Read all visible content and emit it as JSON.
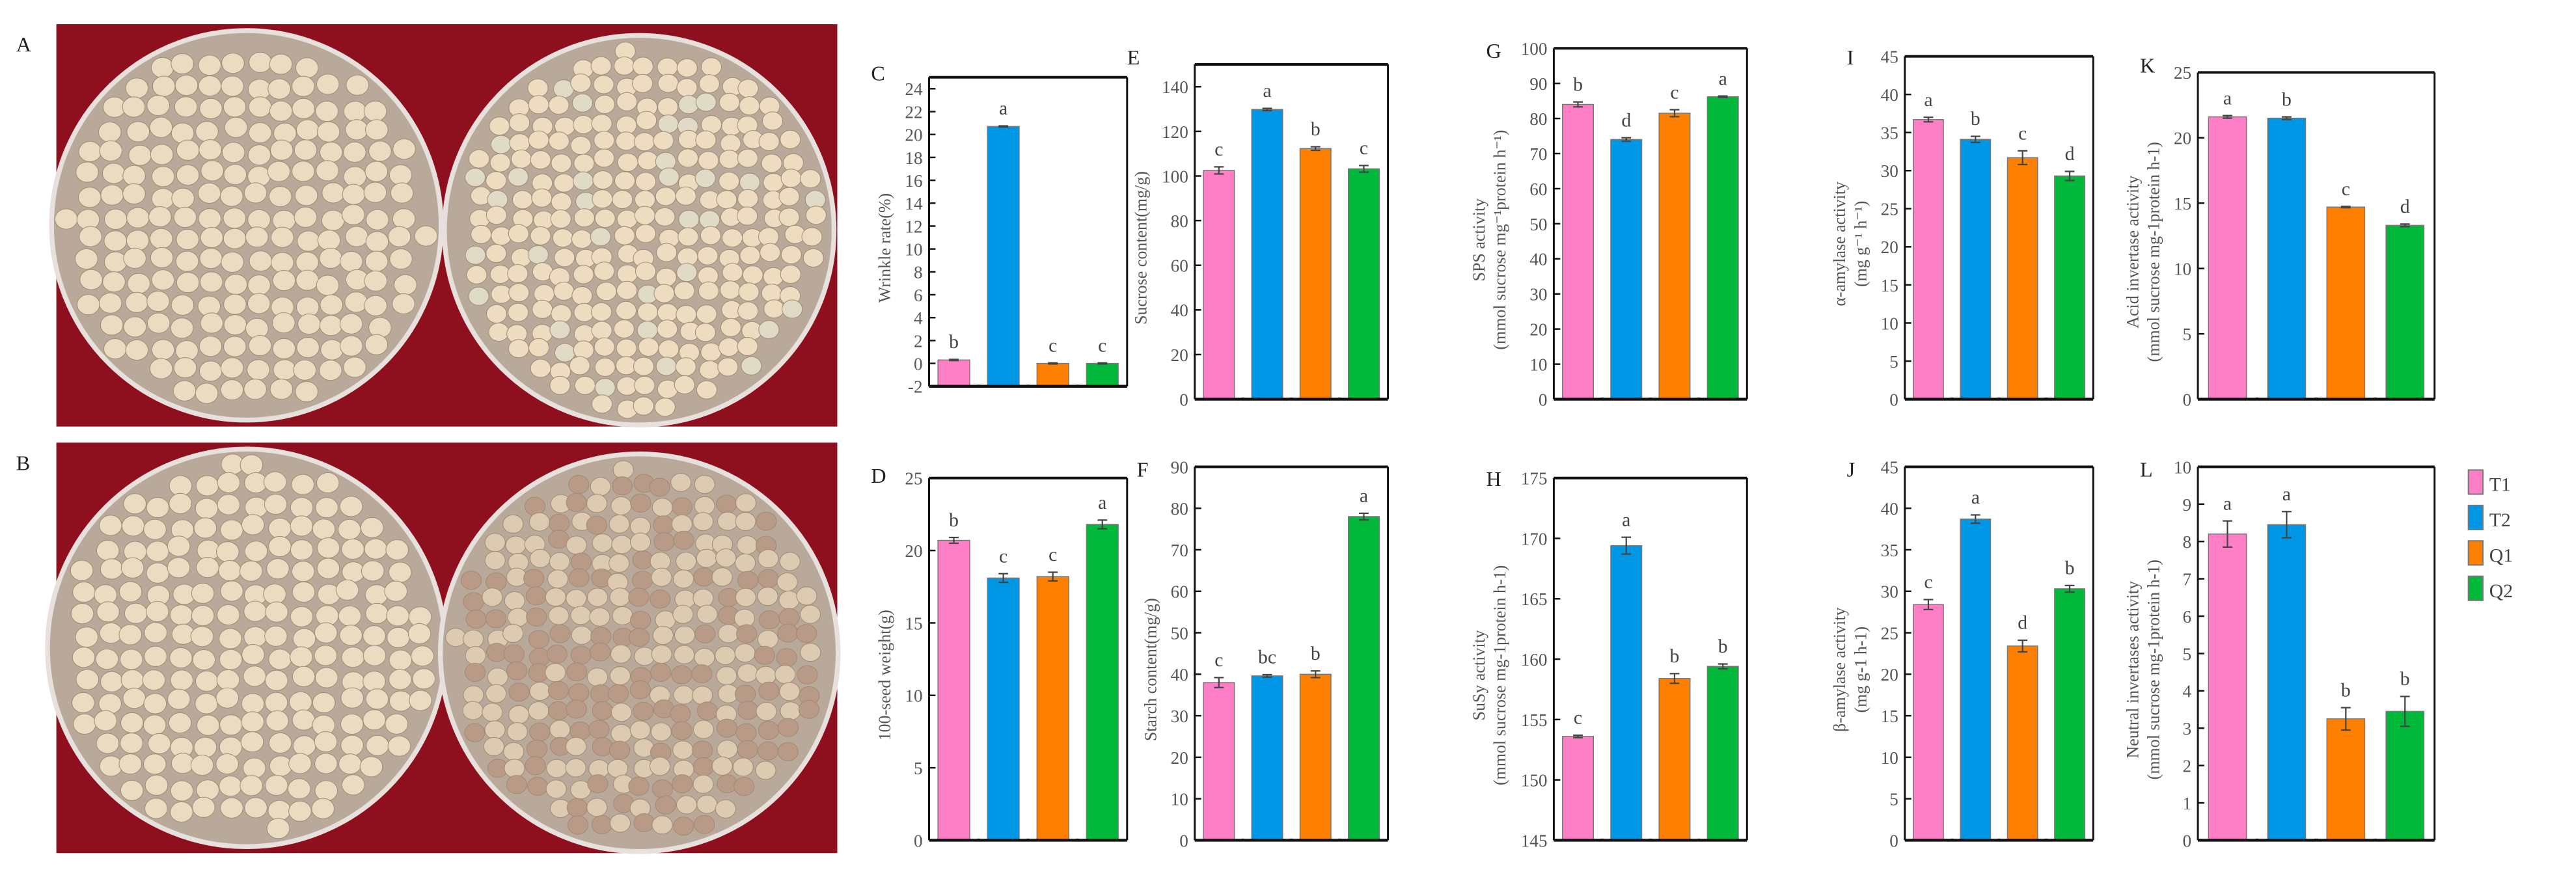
{
  "photo_panels": [
    {
      "label": "A"
    },
    {
      "label": "B"
    }
  ],
  "legend": [
    {
      "label": "T1",
      "color": "#ff7fc6"
    },
    {
      "label": "T2",
      "color": "#0096e6"
    },
    {
      "label": "Q1",
      "color": "#ff8000"
    },
    {
      "label": "Q2",
      "color": "#00b93a"
    }
  ],
  "chart_data": [
    {
      "panel": "C",
      "type": "bar",
      "categories": [
        "T1",
        "T2",
        "Q1",
        "Q2"
      ],
      "values": [
        0.3,
        20.7,
        0.0,
        0.0
      ],
      "errors": [
        0.05,
        0.05,
        0.05,
        0.05
      ],
      "letters": [
        "b",
        "a",
        "c",
        "c"
      ],
      "ylabel": [
        "Wrinkle rate(%)"
      ],
      "ylim": [
        -2,
        25
      ],
      "yticks": [
        -2,
        0,
        2,
        4,
        6,
        8,
        10,
        12,
        14,
        16,
        18,
        20,
        22,
        24
      ]
    },
    {
      "panel": "E",
      "type": "bar",
      "categories": [
        "T1",
        "T2",
        "Q1",
        "Q2"
      ],
      "values": [
        102.5,
        129.8,
        112.3,
        103.2
      ],
      "errors": [
        1.6,
        0.5,
        0.8,
        1.5
      ],
      "letters": [
        "c",
        "a",
        "b",
        "c"
      ],
      "ylabel": [
        "Sucrose content(mg/g)"
      ],
      "ylim": [
        0,
        150
      ],
      "yticks": [
        0,
        20,
        40,
        60,
        80,
        100,
        120,
        140
      ]
    },
    {
      "panel": "G",
      "type": "bar",
      "categories": [
        "T1",
        "T2",
        "Q1",
        "Q2"
      ],
      "values": [
        84.0,
        74.0,
        81.5,
        86.2
      ],
      "errors": [
        0.7,
        0.5,
        1.0,
        0.2
      ],
      "letters": [
        "b",
        "d",
        "c",
        "a"
      ],
      "ylabel": [
        "SPS activity",
        "(mmol sucrose mg⁻¹protein h⁻¹)"
      ],
      "ylim": [
        0,
        100
      ],
      "yticks": [
        0,
        10,
        20,
        30,
        40,
        50,
        60,
        70,
        80,
        90,
        100
      ]
    },
    {
      "panel": "I",
      "type": "bar",
      "categories": [
        "T1",
        "T2",
        "Q1",
        "Q2"
      ],
      "values": [
        36.7,
        34.1,
        31.7,
        29.3
      ],
      "errors": [
        0.3,
        0.4,
        0.9,
        0.6
      ],
      "letters": [
        "a",
        "b",
        "c",
        "d"
      ],
      "ylabel": [
        "α-amylase activity",
        "(mg g⁻¹ h⁻¹)"
      ],
      "ylim": [
        0,
        45
      ],
      "yticks": [
        0,
        5,
        10,
        15,
        20,
        25,
        30,
        35,
        40,
        45
      ]
    },
    {
      "panel": "K",
      "type": "bar",
      "categories": [
        "T1",
        "T2",
        "Q1",
        "Q2"
      ],
      "values": [
        21.6,
        21.5,
        14.7,
        13.3
      ],
      "errors": [
        0.1,
        0.1,
        0.05,
        0.1
      ],
      "letters": [
        "a",
        "b",
        "c",
        "d"
      ],
      "ylabel": [
        "Acid invertase activity",
        "(mmol sucrose mg-1protein h-1)"
      ],
      "ylim": [
        0,
        25
      ],
      "yticks": [
        0,
        5,
        10,
        15,
        20,
        25
      ]
    },
    {
      "panel": "D",
      "type": "bar",
      "categories": [
        "T1",
        "T2",
        "Q1",
        "Q2"
      ],
      "values": [
        20.7,
        18.1,
        18.2,
        21.8
      ],
      "errors": [
        0.2,
        0.3,
        0.3,
        0.3
      ],
      "letters": [
        "b",
        "c",
        "c",
        "a"
      ],
      "ylabel": [
        "100-seed weight(g)"
      ],
      "ylim": [
        0,
        25
      ],
      "yticks": [
        0,
        5,
        10,
        15,
        20,
        25
      ]
    },
    {
      "panel": "F",
      "type": "bar",
      "categories": [
        "T1",
        "T2",
        "Q1",
        "Q2"
      ],
      "values": [
        38.0,
        39.6,
        40.0,
        78.0
      ],
      "errors": [
        1.2,
        0.3,
        0.8,
        0.8
      ],
      "letters": [
        "c",
        "bc",
        "b",
        "a"
      ],
      "ylabel": [
        "Starch content(mg/g)"
      ],
      "ylim": [
        0,
        90
      ],
      "yticks": [
        0,
        10,
        20,
        30,
        40,
        50,
        60,
        70,
        80,
        90
      ]
    },
    {
      "panel": "H",
      "type": "bar",
      "categories": [
        "T1",
        "T2",
        "Q1",
        "Q2"
      ],
      "values": [
        153.6,
        169.4,
        158.4,
        159.4
      ],
      "errors": [
        0.1,
        0.7,
        0.4,
        0.2
      ],
      "letters": [
        "c",
        "a",
        "b",
        "b"
      ],
      "ylabel": [
        "SuSy activity",
        "(mmol sucrose mg-1protein h-1)"
      ],
      "ylim": [
        145,
        175
      ],
      "yticks": [
        145,
        150,
        155,
        160,
        165,
        170,
        175
      ]
    },
    {
      "panel": "J",
      "type": "bar",
      "categories": [
        "T1",
        "T2",
        "Q1",
        "Q2"
      ],
      "values": [
        28.4,
        38.7,
        23.4,
        30.3
      ],
      "errors": [
        0.6,
        0.5,
        0.7,
        0.4
      ],
      "letters": [
        "c",
        "a",
        "d",
        "b"
      ],
      "ylabel": [
        "β-amylase activity",
        "(mg g-1 h-1)"
      ],
      "ylim": [
        0,
        45
      ],
      "yticks": [
        0,
        5,
        10,
        15,
        20,
        25,
        30,
        35,
        40,
        45
      ]
    },
    {
      "panel": "L",
      "type": "bar",
      "categories": [
        "T1",
        "T2",
        "Q1",
        "Q2"
      ],
      "values": [
        8.2,
        8.45,
        3.25,
        3.45
      ],
      "errors": [
        0.35,
        0.35,
        0.3,
        0.4
      ],
      "letters": [
        "a",
        "a",
        "b",
        "b"
      ],
      "ylabel": [
        "Neutral invertases activity",
        "(mmol sucrose mg-1protein h-1)"
      ],
      "ylim": [
        0,
        10
      ],
      "yticks": [
        0,
        1,
        2,
        3,
        4,
        5,
        6,
        7,
        8,
        9,
        10
      ]
    }
  ]
}
